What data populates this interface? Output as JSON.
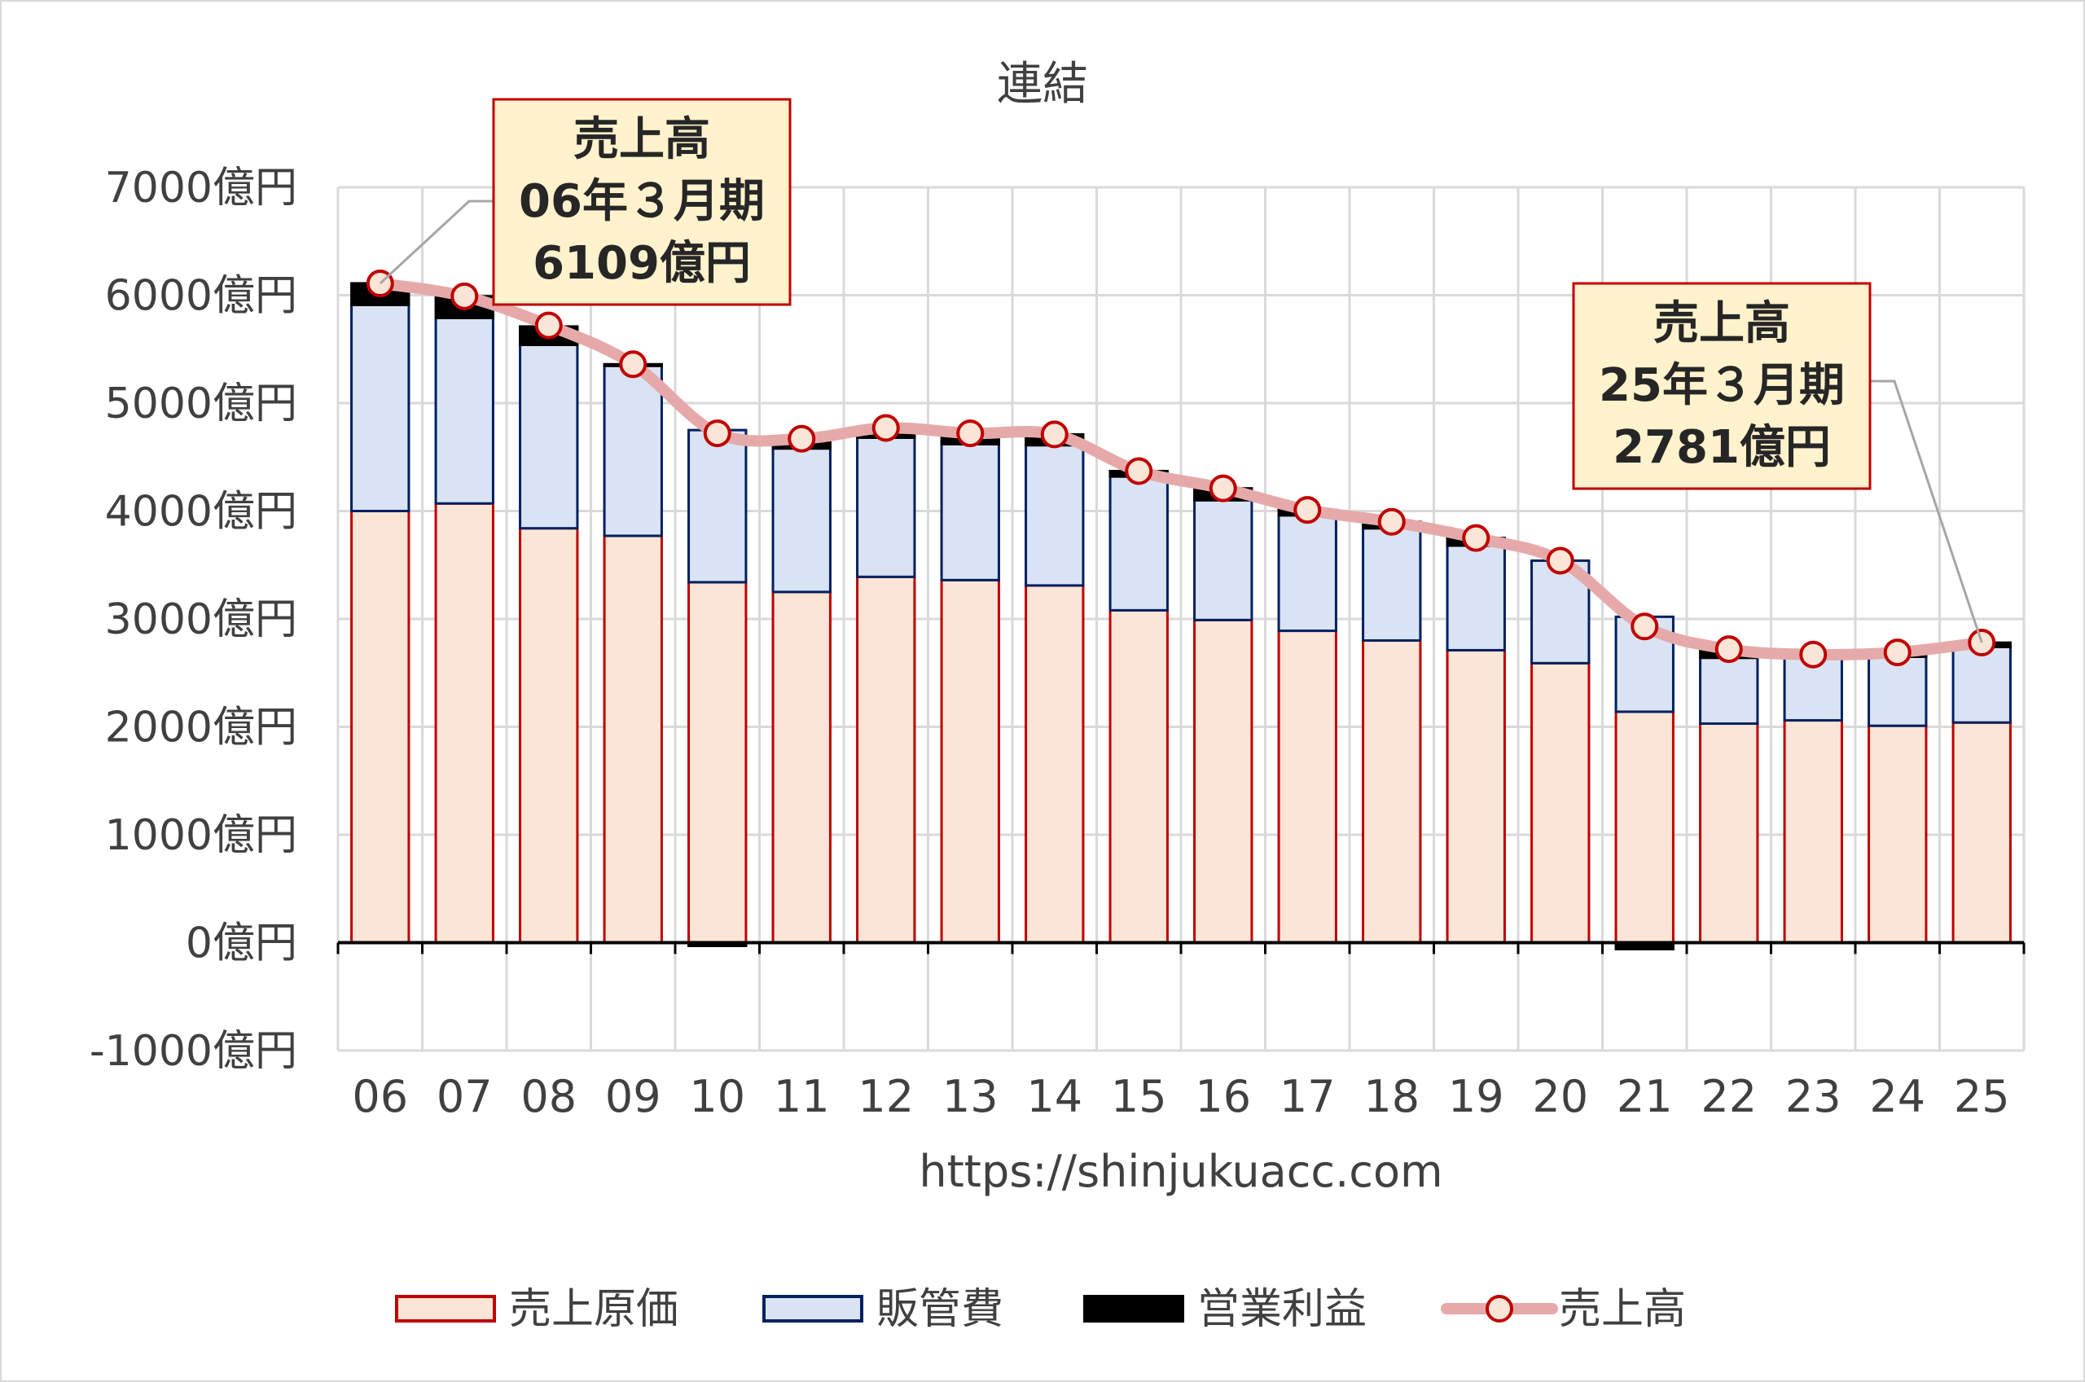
{
  "chart_data": {
    "type": "bar",
    "title": "連結",
    "xlabel": "https://shinjukuacc.com",
    "ylabel": "",
    "ylim": [
      -1000,
      7000
    ],
    "y_ticks": [
      "7000億円",
      "6000億円",
      "5000億円",
      "4000億円",
      "3000億円",
      "2000億円",
      "1000億円",
      "0億円",
      "-1000億円"
    ],
    "y_tick_values": [
      7000,
      6000,
      5000,
      4000,
      3000,
      2000,
      1000,
      0,
      -1000
    ],
    "categories": [
      "06",
      "07",
      "08",
      "09",
      "10",
      "11",
      "12",
      "13",
      "14",
      "15",
      "16",
      "17",
      "18",
      "19",
      "20",
      "21",
      "22",
      "23",
      "24",
      "25"
    ],
    "stacked": true,
    "grid": true,
    "legend": "bottom",
    "series": [
      {
        "name": "売上原価",
        "type": "bar",
        "color": "#fbe5d6",
        "edge": "#c00000",
        "values": [
          4000,
          4070,
          3840,
          3770,
          3340,
          3250,
          3390,
          3360,
          3310,
          3080,
          2990,
          2890,
          2800,
          2710,
          2590,
          2140,
          2030,
          2060,
          2010,
          2040
        ]
      },
      {
        "name": "販管費",
        "type": "bar",
        "color": "#dae3f3",
        "edge": "#002060",
        "values": [
          1910,
          1720,
          1700,
          1580,
          1410,
          1330,
          1290,
          1260,
          1300,
          1240,
          1110,
          1070,
          1040,
          970,
          950,
          880,
          610,
          620,
          640,
          700
        ]
      },
      {
        "name": "営業利益",
        "type": "bar",
        "color": "#000000",
        "edge": "#000000",
        "values": [
          200,
          200,
          170,
          10,
          -30,
          90,
          90,
          100,
          100,
          50,
          110,
          50,
          60,
          70,
          0,
          -60,
          80,
          10,
          40,
          40
        ]
      },
      {
        "name": "売上高",
        "type": "line",
        "color": "#e6a9a9",
        "marker_edge": "#c00000",
        "marker_fill": "#fbe5d6",
        "values": [
          6109,
          5990,
          5720,
          5360,
          4720,
          4670,
          4770,
          4720,
          4710,
          4370,
          4210,
          4010,
          3900,
          3750,
          3540,
          2930,
          2720,
          2670,
          2690,
          2781
        ]
      }
    ],
    "annotations": [
      {
        "lines": [
          "売上高",
          "06年３月期",
          "6109億円"
        ],
        "target_index": 0
      },
      {
        "lines": [
          "売上高",
          "25年３月期",
          "2781億円"
        ],
        "target_index": 19
      }
    ]
  }
}
